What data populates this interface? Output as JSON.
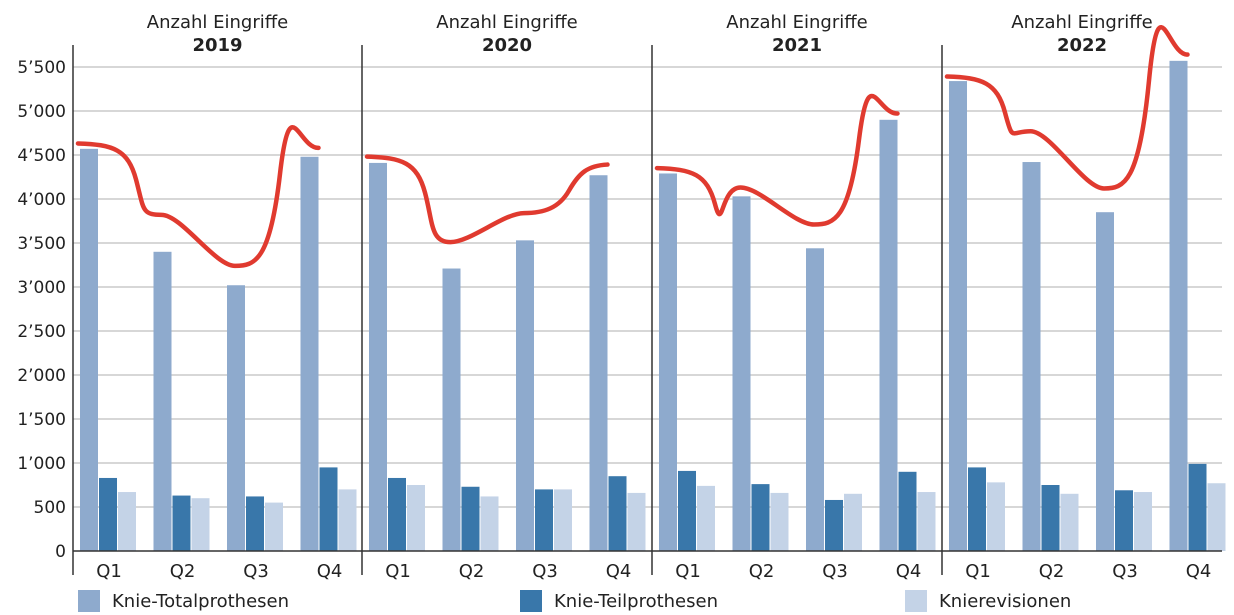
{
  "chart_data": {
    "type": "bar",
    "title_prefix": "Anzahl Eingriffe",
    "years": [
      "2019",
      "2020",
      "2021",
      "2022"
    ],
    "categories": [
      "Q1",
      "Q2",
      "Q3",
      "Q4"
    ],
    "ylim": [
      0,
      5750
    ],
    "yticks": [
      0,
      500,
      1000,
      1500,
      2000,
      2500,
      3000,
      3500,
      4000,
      4500,
      5000,
      5500
    ],
    "ytick_labels": [
      "0",
      "500",
      "1’000",
      "1’500",
      "2’000",
      "2’500",
      "3’000",
      "3’500",
      "4’000",
      "4’500",
      "5’000",
      "5’500"
    ],
    "grid": true,
    "legend_position": "bottom",
    "series": [
      {
        "name": "Knie-Totalprothesen",
        "color": "#8eaacd",
        "values": {
          "2019": [
            4570,
            3400,
            3020,
            4480
          ],
          "2020": [
            4410,
            3210,
            3530,
            4270
          ],
          "2021": [
            4290,
            4030,
            3440,
            4900
          ],
          "2022": [
            5340,
            4420,
            3850,
            5570
          ]
        }
      },
      {
        "name": "Knie-Teilprothesen",
        "color": "#3977aa",
        "values": {
          "2019": [
            830,
            630,
            620,
            950
          ],
          "2020": [
            830,
            730,
            700,
            850
          ],
          "2021": [
            910,
            760,
            580,
            900
          ],
          "2022": [
            950,
            750,
            690,
            990
          ]
        }
      },
      {
        "name": "Knierevisionen",
        "color": "#c4d3e7",
        "values": {
          "2019": [
            670,
            600,
            550,
            700
          ],
          "2020": [
            750,
            620,
            700,
            660
          ],
          "2021": [
            740,
            660,
            650,
            670
          ],
          "2022": [
            780,
            650,
            670,
            770
          ]
        }
      }
    ],
    "annotation": {
      "type": "hand-drawn trend line",
      "color": "#e03a2f",
      "values": {
        "2019": [
          4620,
          3820,
          3240,
          4570
        ],
        "2020": [
          4470,
          3510,
          3840,
          4380
        ],
        "2021": [
          4340,
          4130,
          3710,
          4960
        ],
        "2022": [
          5380,
          4770,
          4120,
          5630
        ]
      }
    }
  }
}
